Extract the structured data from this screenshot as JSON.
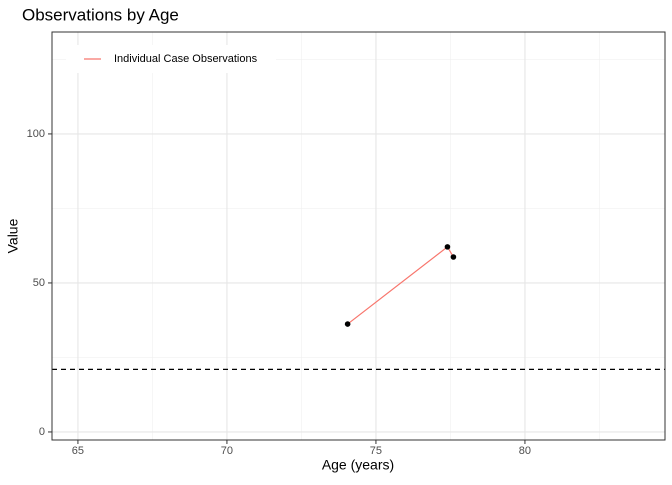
{
  "chart_data": {
    "type": "line",
    "title": "Observations by Age",
    "x_label": "Age (years)",
    "y_label": "Value",
    "series": [
      {
        "name": "Individual Case Observations",
        "color": "#F8766D",
        "point_color": "#000000",
        "x": [
          74.05,
          77.4,
          77.6
        ],
        "values": [
          36.2,
          62.1,
          58.7
        ]
      }
    ],
    "reference_line": {
      "y": 21,
      "style": "dashed",
      "color": "#000000"
    },
    "xlim": [
      64.13,
      84.7
    ],
    "ylim": [
      -2.7,
      134.2
    ],
    "xticks": [
      65,
      70,
      75,
      80
    ],
    "yticks": [
      0,
      50,
      100
    ],
    "x_minor_grid": [
      67.5,
      72.5,
      77.5,
      82.5
    ],
    "y_minor_grid": [
      25,
      75,
      125
    ],
    "grid": true,
    "legend": "top-left"
  }
}
